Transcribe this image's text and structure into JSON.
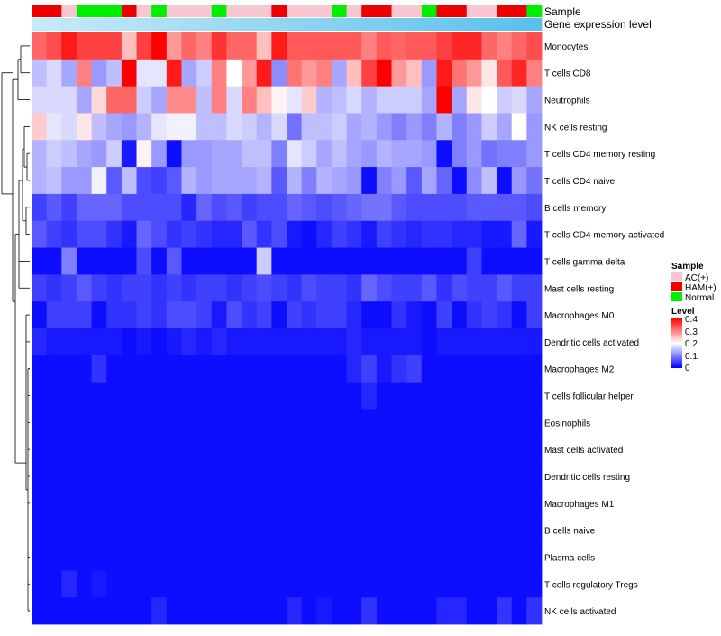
{
  "chart_data": {
    "type": "heatmap",
    "annotation_labels": [
      "Sample",
      "Gene expression level"
    ],
    "row_labels": [
      "Monocytes",
      "T cells CD8",
      "Neutrophils",
      "NK cells resting",
      "T cells CD4 memory resting",
      "T cells CD4 naive",
      "B cells memory",
      "T cells CD4 memory activated",
      "T cells gamma delta",
      "Mast cells resting",
      "Macrophages M0",
      "Dendritic cells activated",
      "Macrophages M2",
      "T cells follicular helper",
      "Eosinophils",
      "Mast cells activated",
      "Dendritic cells resting",
      "Macrophages M1",
      "B cells naive",
      "Plasma cells",
      "T cells regulatory  Tregs",
      "NK cells activated"
    ],
    "legend": {
      "sample_title": "Sample",
      "sample_items": [
        {
          "label": "AC(+)",
          "color": "#f7c6d0"
        },
        {
          "label": "HAM(+)",
          "color": "#ee0000"
        },
        {
          "label": "Normal",
          "color": "#00ee00"
        }
      ],
      "level_title": "Level",
      "level_ticks": [
        "0.4",
        "0.3",
        "0.2",
        "0.1",
        "0"
      ],
      "level_range": [
        0,
        0.4
      ]
    },
    "color_scale": {
      "low": "#0000ff",
      "mid": "#ffffff",
      "high": "#ff0000",
      "min": 0,
      "mid_value": 0.2,
      "max": 0.4
    },
    "sample_groups": [
      "HAM(+)",
      "HAM(+)",
      "AC(+)",
      "Normal",
      "Normal",
      "Normal",
      "HAM(+)",
      "AC(+)",
      "Normal",
      "AC(+)",
      "AC(+)",
      "AC(+)",
      "Normal",
      "AC(+)",
      "AC(+)",
      "AC(+)",
      "HAM(+)",
      "AC(+)",
      "AC(+)",
      "AC(+)",
      "Normal",
      "AC(+)",
      "HAM(+)",
      "HAM(+)",
      "AC(+)",
      "AC(+)",
      "Normal",
      "HAM(+)",
      "HAM(+)",
      "AC(+)",
      "AC(+)",
      "HAM(+)",
      "HAM(+)",
      "Normal"
    ],
    "gene_expression_color": "#5bc0eb",
    "values": [
      [
        0.32,
        0.34,
        0.38,
        0.35,
        0.35,
        0.35,
        0.25,
        0.35,
        0.4,
        0.28,
        0.32,
        0.3,
        0.36,
        0.32,
        0.32,
        0.25,
        0.38,
        0.33,
        0.33,
        0.33,
        0.33,
        0.33,
        0.3,
        0.33,
        0.32,
        0.33,
        0.33,
        0.35,
        0.37,
        0.37,
        0.32,
        0.3,
        0.32,
        0.34
      ],
      [
        0.15,
        0.17,
        0.13,
        0.3,
        0.12,
        0.15,
        0.4,
        0.18,
        0.18,
        0.38,
        0.13,
        0.16,
        0.3,
        0.2,
        0.28,
        0.38,
        0.11,
        0.31,
        0.28,
        0.3,
        0.13,
        0.25,
        0.35,
        0.4,
        0.28,
        0.25,
        0.12,
        0.38,
        0.31,
        0.28,
        0.22,
        0.33,
        0.37,
        0.3
      ],
      [
        0.17,
        0.17,
        0.17,
        0.13,
        0.23,
        0.32,
        0.32,
        0.16,
        0.13,
        0.29,
        0.29,
        0.15,
        0.3,
        0.17,
        0.3,
        0.25,
        0.21,
        0.18,
        0.24,
        0.14,
        0.15,
        0.17,
        0.14,
        0.16,
        0.16,
        0.16,
        0.13,
        0.4,
        0.13,
        0.22,
        0.2,
        0.16,
        0.17,
        0.13
      ],
      [
        0.24,
        0.18,
        0.17,
        0.22,
        0.15,
        0.13,
        0.12,
        0.14,
        0.18,
        0.19,
        0.19,
        0.15,
        0.15,
        0.17,
        0.16,
        0.14,
        0.17,
        0.09,
        0.15,
        0.15,
        0.16,
        0.13,
        0.14,
        0.12,
        0.1,
        0.12,
        0.1,
        0.14,
        0.1,
        0.12,
        0.16,
        0.13,
        0.2,
        0.12
      ],
      [
        0.14,
        0.16,
        0.15,
        0.13,
        0.12,
        0.16,
        0.02,
        0.21,
        0.12,
        0.01,
        0.12,
        0.12,
        0.13,
        0.13,
        0.15,
        0.15,
        0.1,
        0.18,
        0.16,
        0.13,
        0.15,
        0.13,
        0.12,
        0.14,
        0.13,
        0.13,
        0.12,
        0.01,
        0.1,
        0.12,
        0.09,
        0.1,
        0.1,
        0.12
      ],
      [
        0.14,
        0.15,
        0.12,
        0.12,
        0.19,
        0.07,
        0.15,
        0.06,
        0.05,
        0.07,
        0.14,
        0.12,
        0.13,
        0.13,
        0.13,
        0.14,
        0.07,
        0.14,
        0.1,
        0.14,
        0.13,
        0.12,
        0.01,
        0.1,
        0.12,
        0.07,
        0.13,
        0.08,
        0.01,
        0.11,
        0.15,
        0.01,
        0.12,
        0.09
      ],
      [
        0.05,
        0.07,
        0.05,
        0.08,
        0.08,
        0.08,
        0.06,
        0.06,
        0.06,
        0.06,
        0.03,
        0.08,
        0.06,
        0.07,
        0.05,
        0.06,
        0.06,
        0.08,
        0.07,
        0.06,
        0.07,
        0.08,
        0.09,
        0.09,
        0.07,
        0.06,
        0.06,
        0.06,
        0.06,
        0.07,
        0.07,
        0.07,
        0.07,
        0.06
      ],
      [
        0.07,
        0.05,
        0.04,
        0.06,
        0.06,
        0.04,
        0.02,
        0.08,
        0.06,
        0.04,
        0.05,
        0.04,
        0.03,
        0.03,
        0.07,
        0.04,
        0.06,
        0.02,
        0.01,
        0.03,
        0.05,
        0.04,
        0.02,
        0.05,
        0.04,
        0.03,
        0.04,
        0.04,
        0.03,
        0.03,
        0.02,
        0.02,
        0.08,
        0.02
      ],
      [
        0.01,
        0.01,
        0.1,
        0.01,
        0.01,
        0.01,
        0.01,
        0.06,
        0.01,
        0.07,
        0.01,
        0.01,
        0.01,
        0.01,
        0.01,
        0.16,
        0.01,
        0.01,
        0.01,
        0.01,
        0.01,
        0.01,
        0.01,
        0.01,
        0.01,
        0.01,
        0.01,
        0.01,
        0.01,
        0.05,
        0.01,
        0.01,
        0.01,
        0.01
      ],
      [
        0.05,
        0.04,
        0.05,
        0.07,
        0.05,
        0.04,
        0.05,
        0.05,
        0.04,
        0.05,
        0.04,
        0.05,
        0.05,
        0.04,
        0.05,
        0.06,
        0.05,
        0.04,
        0.06,
        0.05,
        0.05,
        0.04,
        0.08,
        0.06,
        0.05,
        0.05,
        0.07,
        0.04,
        0.06,
        0.05,
        0.05,
        0.07,
        0.05,
        0.05
      ],
      [
        0.01,
        0.05,
        0.05,
        0.05,
        0.01,
        0.04,
        0.04,
        0.05,
        0.04,
        0.06,
        0.06,
        0.05,
        0.02,
        0.06,
        0.04,
        0.05,
        0.01,
        0.05,
        0.04,
        0.05,
        0.05,
        0.03,
        0.01,
        0.01,
        0.04,
        0.02,
        0.01,
        0.05,
        0.01,
        0.04,
        0.05,
        0.04,
        0.01,
        0.05
      ],
      [
        0.03,
        0.02,
        0.02,
        0.02,
        0.02,
        0.02,
        0.01,
        0.02,
        0.01,
        0.02,
        0.03,
        0.02,
        0.03,
        0.02,
        0.02,
        0.02,
        0.02,
        0.02,
        0.02,
        0.02,
        0.02,
        0.03,
        0.02,
        0.02,
        0.02,
        0.02,
        0.01,
        0.02,
        0.02,
        0.02,
        0.02,
        0.02,
        0.02,
        0.02
      ],
      [
        0.01,
        0.01,
        0.01,
        0.01,
        0.04,
        0.01,
        0.01,
        0.01,
        0.01,
        0.01,
        0.01,
        0.01,
        0.01,
        0.01,
        0.01,
        0.01,
        0.01,
        0.01,
        0.01,
        0.01,
        0.01,
        0.03,
        0.05,
        0.02,
        0.04,
        0.05,
        0.01,
        0.01,
        0.01,
        0.01,
        0.01,
        0.01,
        0.01,
        0.01
      ],
      [
        0.01,
        0.01,
        0.01,
        0.01,
        0.01,
        0.01,
        0.01,
        0.01,
        0.01,
        0.01,
        0.01,
        0.01,
        0.01,
        0.01,
        0.01,
        0.01,
        0.01,
        0.01,
        0.01,
        0.01,
        0.01,
        0.01,
        0.03,
        0.01,
        0.01,
        0.01,
        0.01,
        0.01,
        0.01,
        0.01,
        0.01,
        0.01,
        0.01,
        0.01
      ],
      [
        0.01,
        0.01,
        0.01,
        0.01,
        0.01,
        0.01,
        0.01,
        0.01,
        0.01,
        0.01,
        0.01,
        0.01,
        0.01,
        0.01,
        0.01,
        0.01,
        0.01,
        0.01,
        0.01,
        0.01,
        0.01,
        0.01,
        0.01,
        0.01,
        0.01,
        0.01,
        0.01,
        0.01,
        0.01,
        0.01,
        0.01,
        0.01,
        0.01,
        0.01
      ],
      [
        0.01,
        0.01,
        0.01,
        0.01,
        0.01,
        0.01,
        0.01,
        0.01,
        0.01,
        0.01,
        0.01,
        0.01,
        0.01,
        0.01,
        0.01,
        0.01,
        0.01,
        0.01,
        0.01,
        0.01,
        0.01,
        0.01,
        0.01,
        0.01,
        0.01,
        0.01,
        0.01,
        0.01,
        0.01,
        0.01,
        0.01,
        0.01,
        0.01,
        0.01
      ],
      [
        0.01,
        0.01,
        0.01,
        0.01,
        0.01,
        0.01,
        0.01,
        0.01,
        0.01,
        0.01,
        0.01,
        0.01,
        0.01,
        0.01,
        0.01,
        0.01,
        0.01,
        0.01,
        0.01,
        0.01,
        0.01,
        0.01,
        0.01,
        0.01,
        0.01,
        0.01,
        0.01,
        0.01,
        0.01,
        0.01,
        0.01,
        0.01,
        0.01,
        0.01
      ],
      [
        0.01,
        0.01,
        0.01,
        0.01,
        0.01,
        0.01,
        0.01,
        0.01,
        0.01,
        0.01,
        0.01,
        0.01,
        0.01,
        0.01,
        0.01,
        0.01,
        0.01,
        0.01,
        0.01,
        0.01,
        0.01,
        0.01,
        0.01,
        0.01,
        0.01,
        0.01,
        0.01,
        0.01,
        0.01,
        0.01,
        0.01,
        0.01,
        0.01,
        0.01
      ],
      [
        0.01,
        0.01,
        0.01,
        0.01,
        0.01,
        0.01,
        0.01,
        0.01,
        0.01,
        0.01,
        0.01,
        0.01,
        0.01,
        0.01,
        0.01,
        0.01,
        0.01,
        0.01,
        0.01,
        0.01,
        0.01,
        0.01,
        0.01,
        0.01,
        0.01,
        0.01,
        0.01,
        0.01,
        0.01,
        0.01,
        0.01,
        0.01,
        0.01,
        0.01
      ],
      [
        0.01,
        0.01,
        0.01,
        0.01,
        0.01,
        0.01,
        0.01,
        0.01,
        0.01,
        0.01,
        0.01,
        0.01,
        0.01,
        0.01,
        0.01,
        0.01,
        0.01,
        0.01,
        0.01,
        0.01,
        0.01,
        0.01,
        0.01,
        0.01,
        0.01,
        0.01,
        0.01,
        0.01,
        0.01,
        0.01,
        0.01,
        0.01,
        0.01,
        0.01
      ],
      [
        0.01,
        0.01,
        0.03,
        0.01,
        0.02,
        0.01,
        0.01,
        0.01,
        0.01,
        0.01,
        0.01,
        0.01,
        0.01,
        0.01,
        0.01,
        0.01,
        0.01,
        0.01,
        0.01,
        0.01,
        0.01,
        0.01,
        0.01,
        0.01,
        0.01,
        0.01,
        0.01,
        0.01,
        0.01,
        0.01,
        0.01,
        0.01,
        0.01,
        0.01
      ],
      [
        0.01,
        0.01,
        0.01,
        0.01,
        0.01,
        0.01,
        0.01,
        0.01,
        0.03,
        0.01,
        0.01,
        0.01,
        0.01,
        0.01,
        0.01,
        0.01,
        0.01,
        0.03,
        0.01,
        0.02,
        0.01,
        0.01,
        0.04,
        0.01,
        0.01,
        0.01,
        0.01,
        0.03,
        0.03,
        0.01,
        0.01,
        0.04,
        0.01,
        0.04
      ]
    ]
  }
}
